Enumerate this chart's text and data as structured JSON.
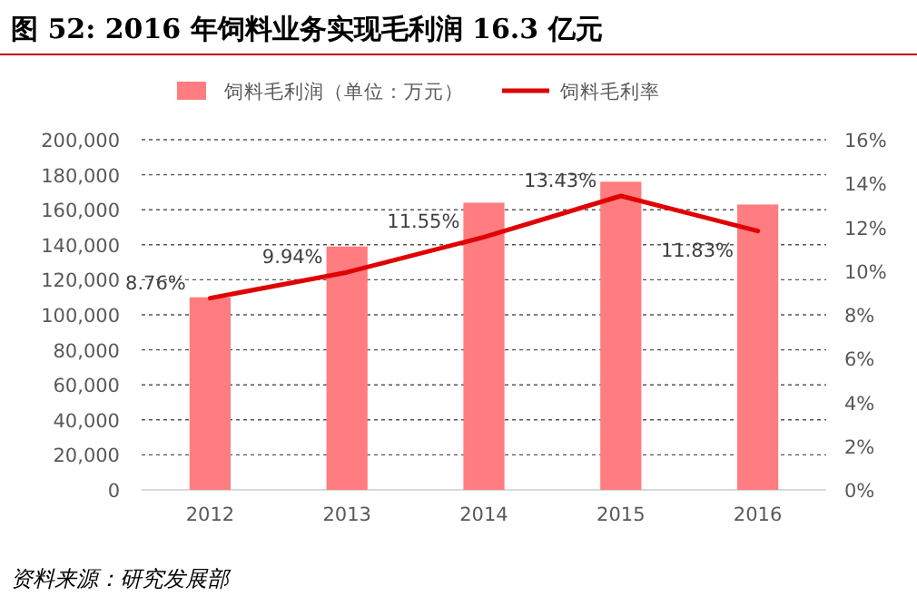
{
  "chart_data": {
    "type": "bar",
    "title": "图 52: 2016 年饲料业务实现毛利润 16.3 亿元",
    "categories": [
      "2012",
      "2013",
      "2014",
      "2015",
      "2016"
    ],
    "series": [
      {
        "name": "饲料毛利润（单位：万元）",
        "color": "#ff7c80",
        "values": [
          110000,
          139000,
          164000,
          176000,
          163000
        ]
      },
      {
        "name": "饲料毛利率",
        "type": "line",
        "axis": "y2",
        "color": "#e00000",
        "values": [
          8.76,
          9.94,
          11.55,
          13.43,
          11.83
        ],
        "value_labels": [
          "8.76%",
          "9.94%",
          "11.55%",
          "13.43%",
          "11.83%"
        ]
      }
    ],
    "ylim": [
      0,
      200000
    ],
    "yticks": [
      {
        "value": 0,
        "label": "0"
      },
      {
        "value": 20000,
        "label": "20,000"
      },
      {
        "value": 40000,
        "label": "40,000"
      },
      {
        "value": 60000,
        "label": "60,000"
      },
      {
        "value": 80000,
        "label": "80,000"
      },
      {
        "value": 100000,
        "label": "100,000"
      },
      {
        "value": 120000,
        "label": "120,000"
      },
      {
        "value": 140000,
        "label": "140,000"
      },
      {
        "value": 160000,
        "label": "160,000"
      },
      {
        "value": 180000,
        "label": "180,000"
      },
      {
        "value": 200000,
        "label": "200,000"
      }
    ],
    "y2lim": [
      0,
      16
    ],
    "y2ticks": [
      {
        "value": 0,
        "label": "0%"
      },
      {
        "value": 2,
        "label": "2%"
      },
      {
        "value": 4,
        "label": "4%"
      },
      {
        "value": 6,
        "label": "6%"
      },
      {
        "value": 8,
        "label": "8%"
      },
      {
        "value": 10,
        "label": "10%"
      },
      {
        "value": 12,
        "label": "12%"
      },
      {
        "value": 14,
        "label": "14%"
      },
      {
        "value": 16,
        "label": "16%"
      }
    ],
    "grid": "y",
    "legend": "top",
    "marker": "none",
    "line_style": "solid",
    "annotations": [
      "资料来源：研究发展部"
    ]
  }
}
